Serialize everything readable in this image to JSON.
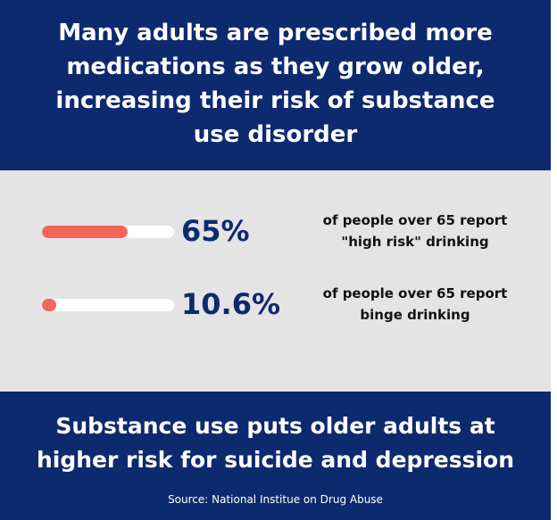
{
  "header": {
    "headline_lines": [
      "Many adults are prescribed more",
      "medications as they grow older,",
      "increasing  their risk of substance",
      "use disorder"
    ]
  },
  "stats": [
    {
      "value": "65%",
      "fill_percent": 65,
      "description_lines": [
        "of people over 65 report",
        "\"high risk\" drinking"
      ]
    },
    {
      "value": "10.6%",
      "fill_percent": 10.6,
      "description_lines": [
        "of people over 65 report",
        "binge drinking"
      ]
    }
  ],
  "footer": {
    "headline_lines": [
      "Substance use puts older adults at",
      "higher risk for suicide and depression"
    ],
    "source": "Source: National Institue on Drug Abuse"
  },
  "colors": {
    "navy": "#0e2a6f",
    "accent": "#f2665a",
    "panel": "#e4e4e4"
  }
}
